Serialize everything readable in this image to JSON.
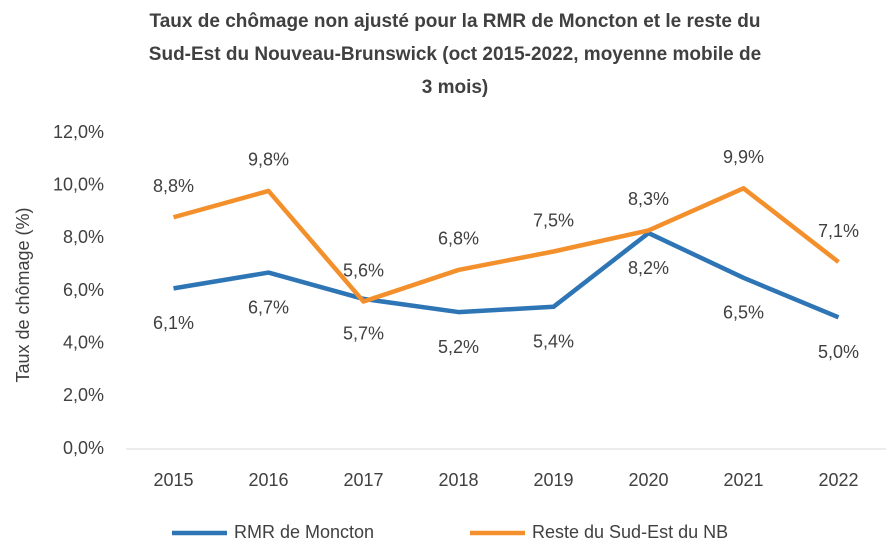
{
  "chart_data": {
    "type": "line",
    "title": [
      "Taux de chômage non ajusté pour la RMR de Moncton et le reste du",
      "Sud-Est du Nouveau-Brunswick (oct 2015-2022, moyenne mobile de",
      "3 mois)"
    ],
    "y_label": "Taux de chômage (%)",
    "categories": [
      "2015",
      "2016",
      "2017",
      "2018",
      "2019",
      "2020",
      "2021",
      "2022"
    ],
    "series": [
      {
        "name": "RMR de Moncton",
        "color": "#2e75b6",
        "values": [
          6.1,
          6.7,
          5.7,
          5.2,
          5.4,
          8.2,
          6.5,
          5.0
        ],
        "value_labels": [
          "6,1%",
          "6,7%",
          "5,7%",
          "5,2%",
          "5,4%",
          "8,2%",
          "6,5%",
          "5,0%"
        ]
      },
      {
        "name": "Reste du Sud-Est du NB",
        "color": "#f4902c",
        "values": [
          8.8,
          9.8,
          5.6,
          6.8,
          7.5,
          8.3,
          9.9,
          7.1
        ],
        "value_labels": [
          "8,8%",
          "9,8%",
          "5,6%",
          "6,8%",
          "7,5%",
          "8,3%",
          "9,9%",
          "7,1%"
        ]
      }
    ],
    "ylim": [
      0,
      12
    ],
    "yticks": [
      {
        "value": 0,
        "label": "0,0%"
      },
      {
        "value": 2,
        "label": "2,0%"
      },
      {
        "value": 4,
        "label": "4,0%"
      },
      {
        "value": 6,
        "label": "6,0%"
      },
      {
        "value": 8,
        "label": "8,0%"
      },
      {
        "value": 10,
        "label": "10,0%"
      },
      {
        "value": 12,
        "label": "12,0%"
      }
    ],
    "grid": false,
    "legend": "bottom"
  }
}
